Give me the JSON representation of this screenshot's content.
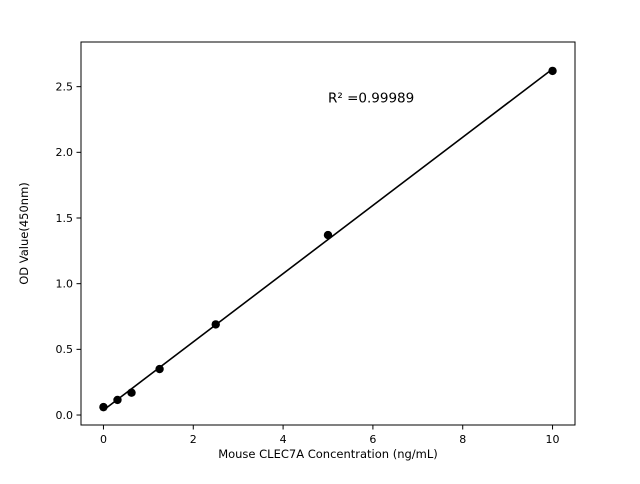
{
  "figure": {
    "background": "#ffffff"
  },
  "chart_data": {
    "type": "scatter",
    "title": "",
    "xlabel": "Mouse CLEC7A Concentration (ng/mL)",
    "ylabel": "OD Value(450nm)",
    "x": [
      0,
      0.3125,
      0.625,
      1.25,
      2.5,
      5,
      10
    ],
    "y": [
      0.06,
      0.115,
      0.17,
      0.35,
      0.69,
      1.37,
      2.62
    ],
    "fit_line": {
      "slope": 0.2597,
      "intercept": 0.0375,
      "x_start": 0,
      "x_end": 10
    },
    "annotation": {
      "text": "R² =0.99989",
      "x": 5.0,
      "y": 2.38
    },
    "xlim": [
      -0.5,
      10.5
    ],
    "ylim": [
      -0.076,
      2.84
    ],
    "xticks": [
      0,
      2,
      4,
      6,
      8,
      10
    ],
    "xtick_labels": [
      "0",
      "2",
      "4",
      "6",
      "8",
      "10"
    ],
    "yticks": [
      0.0,
      0.5,
      1.0,
      1.5,
      2.0,
      2.5
    ],
    "ytick_labels": [
      "0.0",
      "0.5",
      "1.0",
      "1.5",
      "2.0",
      "2.5"
    ],
    "marker_color": "#000000",
    "line_color": "#000000",
    "axis_color": "#000000",
    "grid": false,
    "legend": "none"
  }
}
